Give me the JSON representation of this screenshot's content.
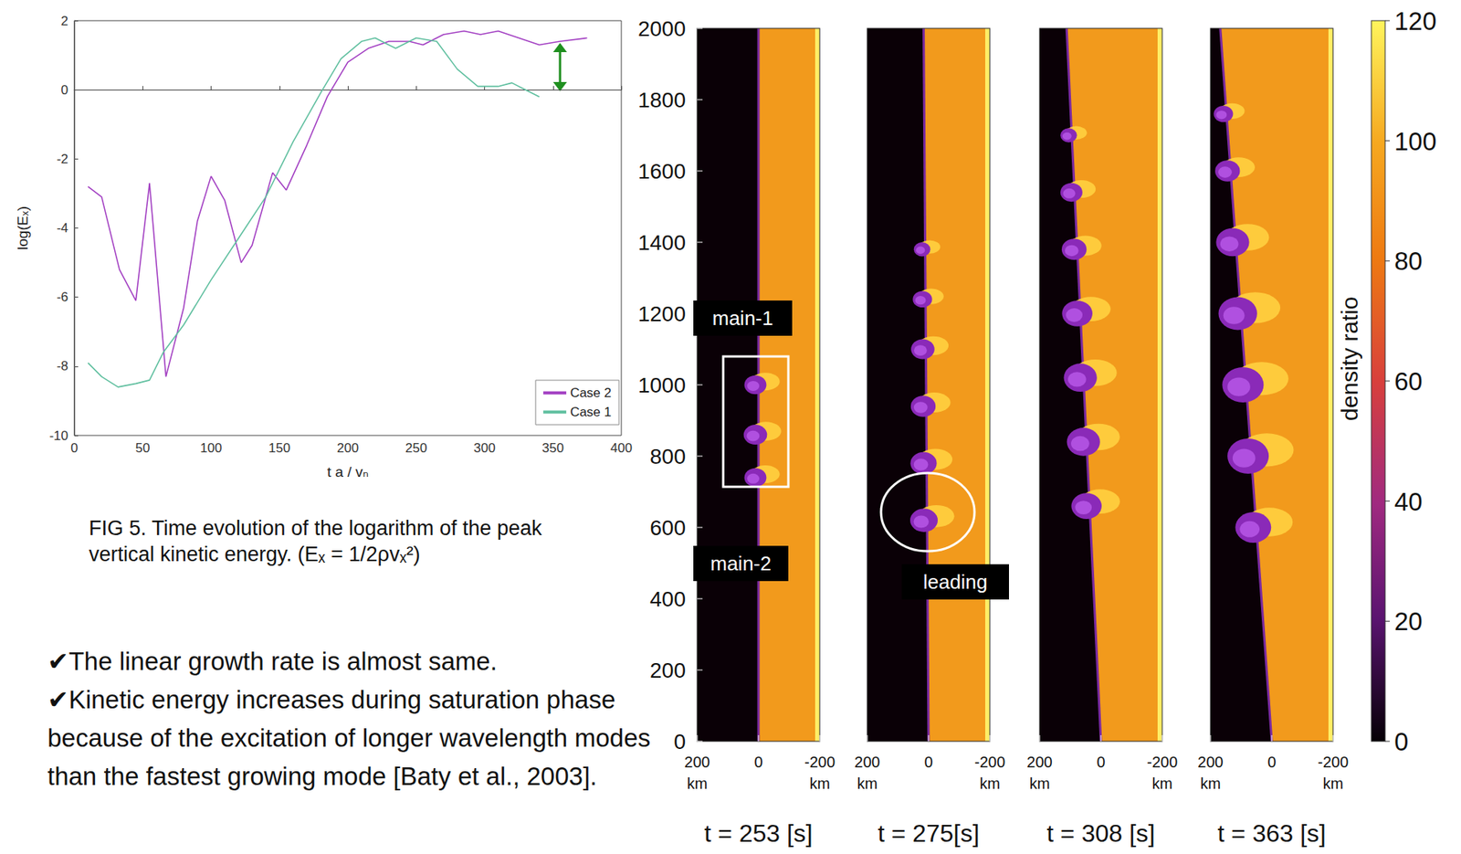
{
  "chart_data": {
    "type": "line",
    "xlabel": "t a / vₙ",
    "ylabel": "log(Eₓ)",
    "xlim": [
      0,
      400
    ],
    "xticks": [
      0,
      50,
      100,
      150,
      200,
      250,
      300,
      350,
      400
    ],
    "ylim": [
      -10,
      2
    ],
    "yticks": [
      -10,
      -8,
      -6,
      -4,
      -2,
      0,
      2
    ],
    "grid": false,
    "legend": "lower right",
    "series": [
      {
        "name": "Case 2",
        "color": "#a23fc2",
        "x": [
          10,
          20,
          33,
          45,
          55,
          67,
          80,
          90,
          100,
          110,
          122,
          130,
          145,
          155,
          170,
          185,
          200,
          215,
          230,
          245,
          255,
          270,
          285,
          297,
          310,
          325,
          340,
          355,
          375
        ],
        "values": [
          -2.8,
          -3.1,
          -5.2,
          -6.1,
          -2.7,
          -8.3,
          -6.3,
          -3.8,
          -2.5,
          -3.2,
          -5.0,
          -4.5,
          -2.4,
          -2.9,
          -1.6,
          -0.2,
          0.8,
          1.2,
          1.4,
          1.4,
          1.3,
          1.6,
          1.7,
          1.6,
          1.7,
          1.5,
          1.3,
          1.4,
          1.5
        ]
      },
      {
        "name": "Case 1",
        "color": "#5fbf9f",
        "x": [
          10,
          20,
          32,
          45,
          55,
          65,
          80,
          100,
          120,
          140,
          160,
          180,
          195,
          210,
          220,
          235,
          250,
          265,
          280,
          295,
          310,
          320,
          330,
          340
        ],
        "values": [
          -7.9,
          -8.3,
          -8.6,
          -8.5,
          -8.4,
          -7.6,
          -6.8,
          -5.5,
          -4.3,
          -3.1,
          -1.5,
          -0.1,
          0.9,
          1.4,
          1.5,
          1.2,
          1.5,
          1.4,
          0.6,
          0.1,
          0.1,
          0.2,
          0.0,
          -0.2
        ]
      }
    ]
  },
  "caption": "FIG 5. Time evolution of the logarithm of the peak vertical kinetic energy. (Eₓ = 1/2ρvₓ²)",
  "bullets": [
    "✔The linear growth rate is almost same.",
    "✔Kinetic energy increases during saturation phase because of the excitation of longer wavelength modes than the fastest growing mode [Baty et al., 2003]."
  ],
  "simulation": {
    "ylim": [
      0,
      2000
    ],
    "yticks": [
      0,
      200,
      400,
      600,
      800,
      1000,
      1200,
      1400,
      1600,
      1800,
      2000
    ],
    "xlim": [
      200,
      -200
    ],
    "xticks": [
      {
        "value": 200,
        "label": "200 km"
      },
      0,
      {
        "value": -200,
        "label": "-200 km"
      }
    ],
    "panels": [
      {
        "time_label": "t = 253 [s]",
        "annotations": [
          "main-1",
          "main-2"
        ]
      },
      {
        "time_label": "t = 275[s]",
        "annotations": [
          "leading"
        ]
      },
      {
        "time_label": "t = 308 [s]",
        "annotations": []
      },
      {
        "time_label": "t = 363 [s]",
        "annotations": []
      }
    ],
    "colorbar": {
      "label": "density ratio",
      "range": [
        0,
        120
      ],
      "ticks": [
        0,
        20,
        40,
        60,
        80,
        100,
        120
      ]
    }
  }
}
